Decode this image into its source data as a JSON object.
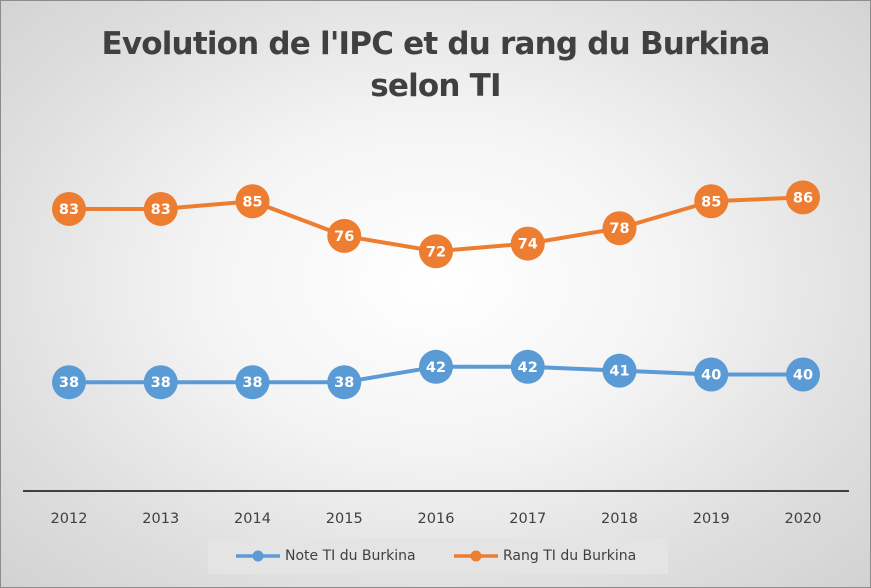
{
  "chart_data": {
    "type": "line",
    "title_lines": [
      "Evolution de l'IPC et du rang du Burkina",
      "selon TI"
    ],
    "categories": [
      "2012",
      "2013",
      "2014",
      "2015",
      "2016",
      "2017",
      "2018",
      "2019",
      "2020"
    ],
    "series": [
      {
        "name": "Note TI du Burkina",
        "color": "#5b9bd5",
        "values": [
          38,
          38,
          38,
          38,
          42,
          42,
          41,
          40,
          40
        ]
      },
      {
        "name": "Rang TI du Burkina",
        "color": "#ed7d31",
        "values": [
          83,
          83,
          85,
          76,
          72,
          74,
          78,
          85,
          86
        ]
      }
    ],
    "data_labels": true,
    "gridlines": false,
    "y_axis_visible": false,
    "legend_position": "bottom"
  }
}
